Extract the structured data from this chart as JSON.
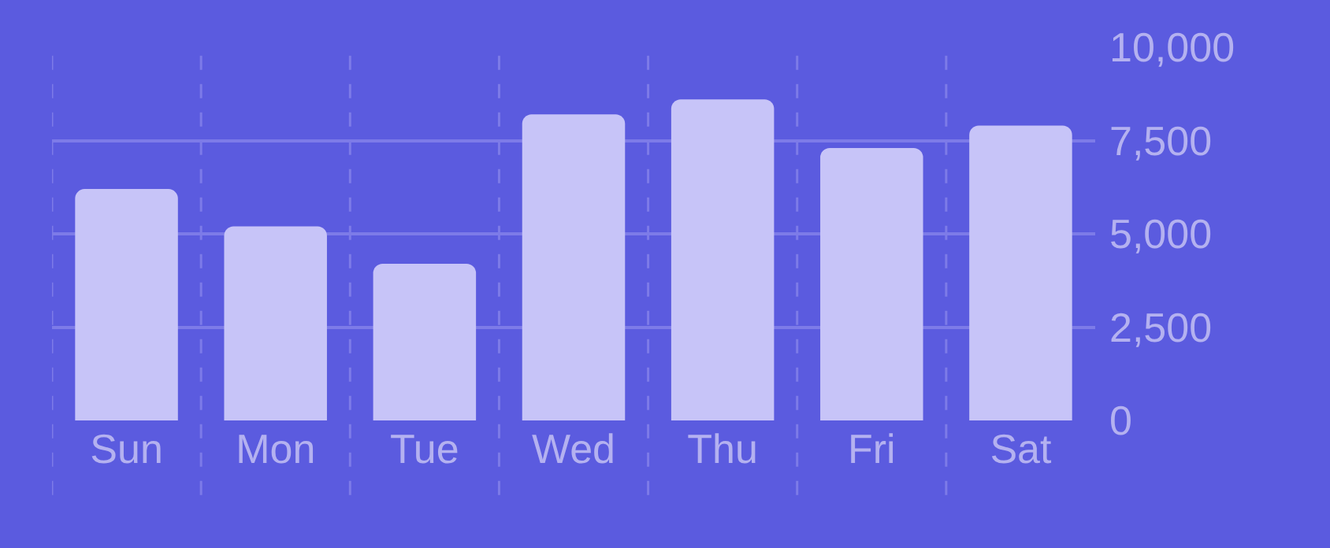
{
  "chart_data": {
    "type": "bar",
    "categories": [
      "Sun",
      "Mon",
      "Tue",
      "Wed",
      "Thu",
      "Fri",
      "Sat"
    ],
    "values": [
      6200,
      5200,
      4200,
      8200,
      8600,
      7300,
      7900
    ],
    "color": "#c7c4f8",
    "ylim": [
      0,
      10000
    ],
    "yticks": [
      0,
      {
        "value": 2500,
        "label": "2,500"
      },
      {
        "value": 5000,
        "label": "5,000"
      },
      {
        "value": 7500,
        "label": "7,500"
      },
      {
        "value": 10000,
        "label": "10,000"
      }
    ],
    "grid": true
  }
}
